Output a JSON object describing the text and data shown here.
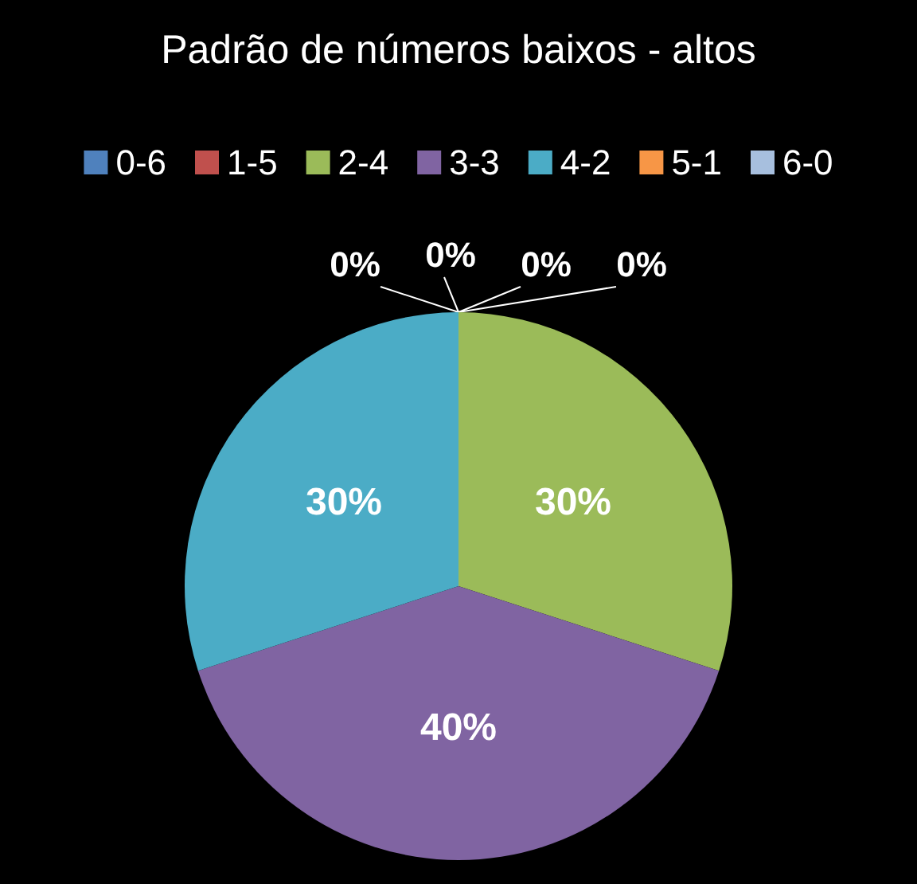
{
  "chart_data": {
    "type": "pie",
    "title": "Padrão de números baixos - altos",
    "categories": [
      "0-6",
      "1-5",
      "2-4",
      "3-3",
      "4-2",
      "5-1",
      "6-0"
    ],
    "values": [
      0,
      0,
      30,
      40,
      30,
      0,
      0
    ],
    "colors": [
      "#4f81bd",
      "#c0504d",
      "#9bbb59",
      "#8064a2",
      "#4bacc6",
      "#f79646",
      "#a7bfde"
    ],
    "value_labels": [
      "0%",
      "0%",
      "30%",
      "40%",
      "30%",
      "0%",
      "0%"
    ],
    "legend": "top"
  }
}
